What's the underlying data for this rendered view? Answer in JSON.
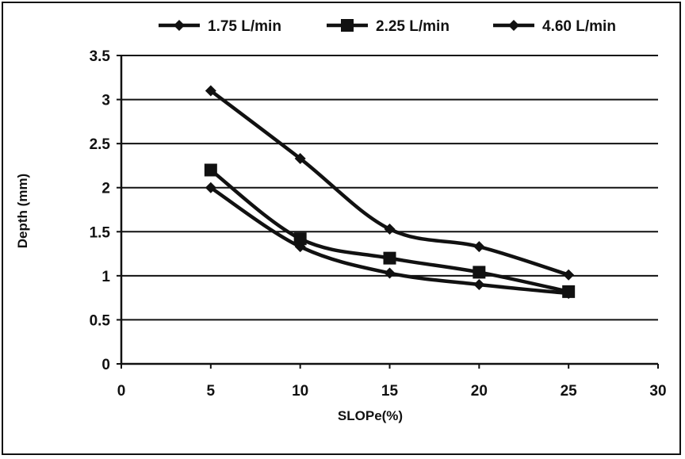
{
  "chart_data": {
    "type": "line",
    "title": "",
    "xlabel": "SLOPe(%)",
    "ylabel": "Depth (mm)",
    "xlim": [
      0,
      30
    ],
    "ylim": [
      0,
      3.5
    ],
    "x_ticks": [
      "0",
      "5",
      "10",
      "15",
      "20",
      "25",
      "30"
    ],
    "y_ticks": [
      "0",
      "0.5",
      "1",
      "1.5",
      "2",
      "2.5",
      "3",
      "3.5"
    ],
    "grid": "horizontal",
    "legend_position": "top",
    "x": [
      5,
      10,
      15,
      20,
      25
    ],
    "series": [
      {
        "name": "1.75 L/min",
        "marker": "diamond",
        "color": "#111111",
        "values": [
          2.0,
          1.33,
          1.03,
          0.9,
          0.8
        ]
      },
      {
        "name": "2.25 L/min",
        "marker": "square",
        "color": "#111111",
        "values": [
          2.2,
          1.42,
          1.2,
          1.04,
          0.82
        ]
      },
      {
        "name": "4.60 L/min",
        "marker": "diamond",
        "color": "#111111",
        "values": [
          3.1,
          2.33,
          1.53,
          1.33,
          1.01
        ]
      }
    ]
  }
}
